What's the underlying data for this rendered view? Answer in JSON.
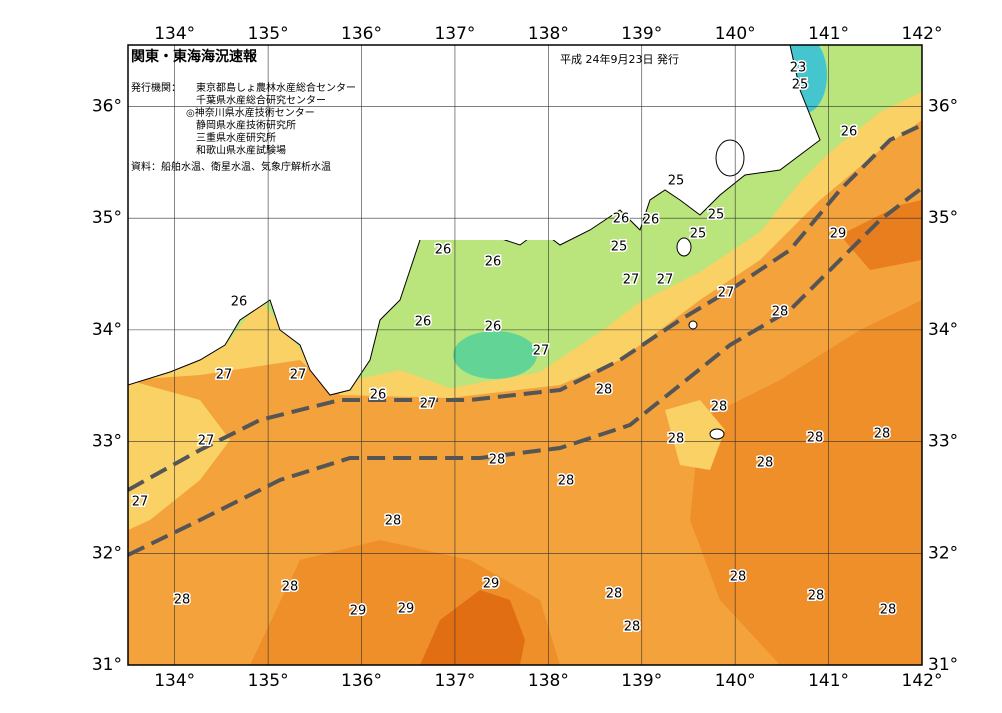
{
  "map": {
    "title": "関東・東海海況速報",
    "date": "平成 24年9月23日 発行",
    "issuer_heading": "発行機関：",
    "issuers": [
      "東京都島しょ農林水産総合センター",
      "千葉県水産総合研究センター",
      "◎神奈川県水産技術センター",
      "静岡県水産技術研究所",
      "三重県水産研究所",
      "和歌山県水産試験場"
    ],
    "sources": "資料：船舶水温、衛星水温、気象庁解析水温",
    "xlim": [
      133.5,
      142
    ],
    "ylim": [
      31,
      36.55
    ],
    "xticks": [
      {
        "value": 134,
        "label": "134°"
      },
      {
        "value": 135,
        "label": "135°"
      },
      {
        "value": 136,
        "label": "136°"
      },
      {
        "value": 137,
        "label": "137°"
      },
      {
        "value": 138,
        "label": "138°"
      },
      {
        "value": 139,
        "label": "139°"
      },
      {
        "value": 140,
        "label": "140°"
      },
      {
        "value": 141,
        "label": "141°"
      },
      {
        "value": 142,
        "label": "142°"
      }
    ],
    "yticks": [
      {
        "value": 31,
        "label": "31°"
      },
      {
        "value": 32,
        "label": "32°"
      },
      {
        "value": 33,
        "label": "33°"
      },
      {
        "value": 34,
        "label": "34°"
      },
      {
        "value": 35,
        "label": "35°"
      },
      {
        "value": 36,
        "label": "36°"
      }
    ],
    "contour_labels": [
      23,
      25,
      26,
      26,
      26,
      26,
      26,
      26,
      26,
      26,
      26,
      25,
      25,
      25,
      25,
      27,
      27,
      27,
      27,
      27,
      27,
      27,
      27,
      27,
      29,
      28,
      28,
      28,
      28,
      28,
      28,
      28,
      28,
      28,
      28,
      28,
      28,
      29,
      29,
      29,
      28,
      28,
      28,
      28,
      28
    ]
  }
}
